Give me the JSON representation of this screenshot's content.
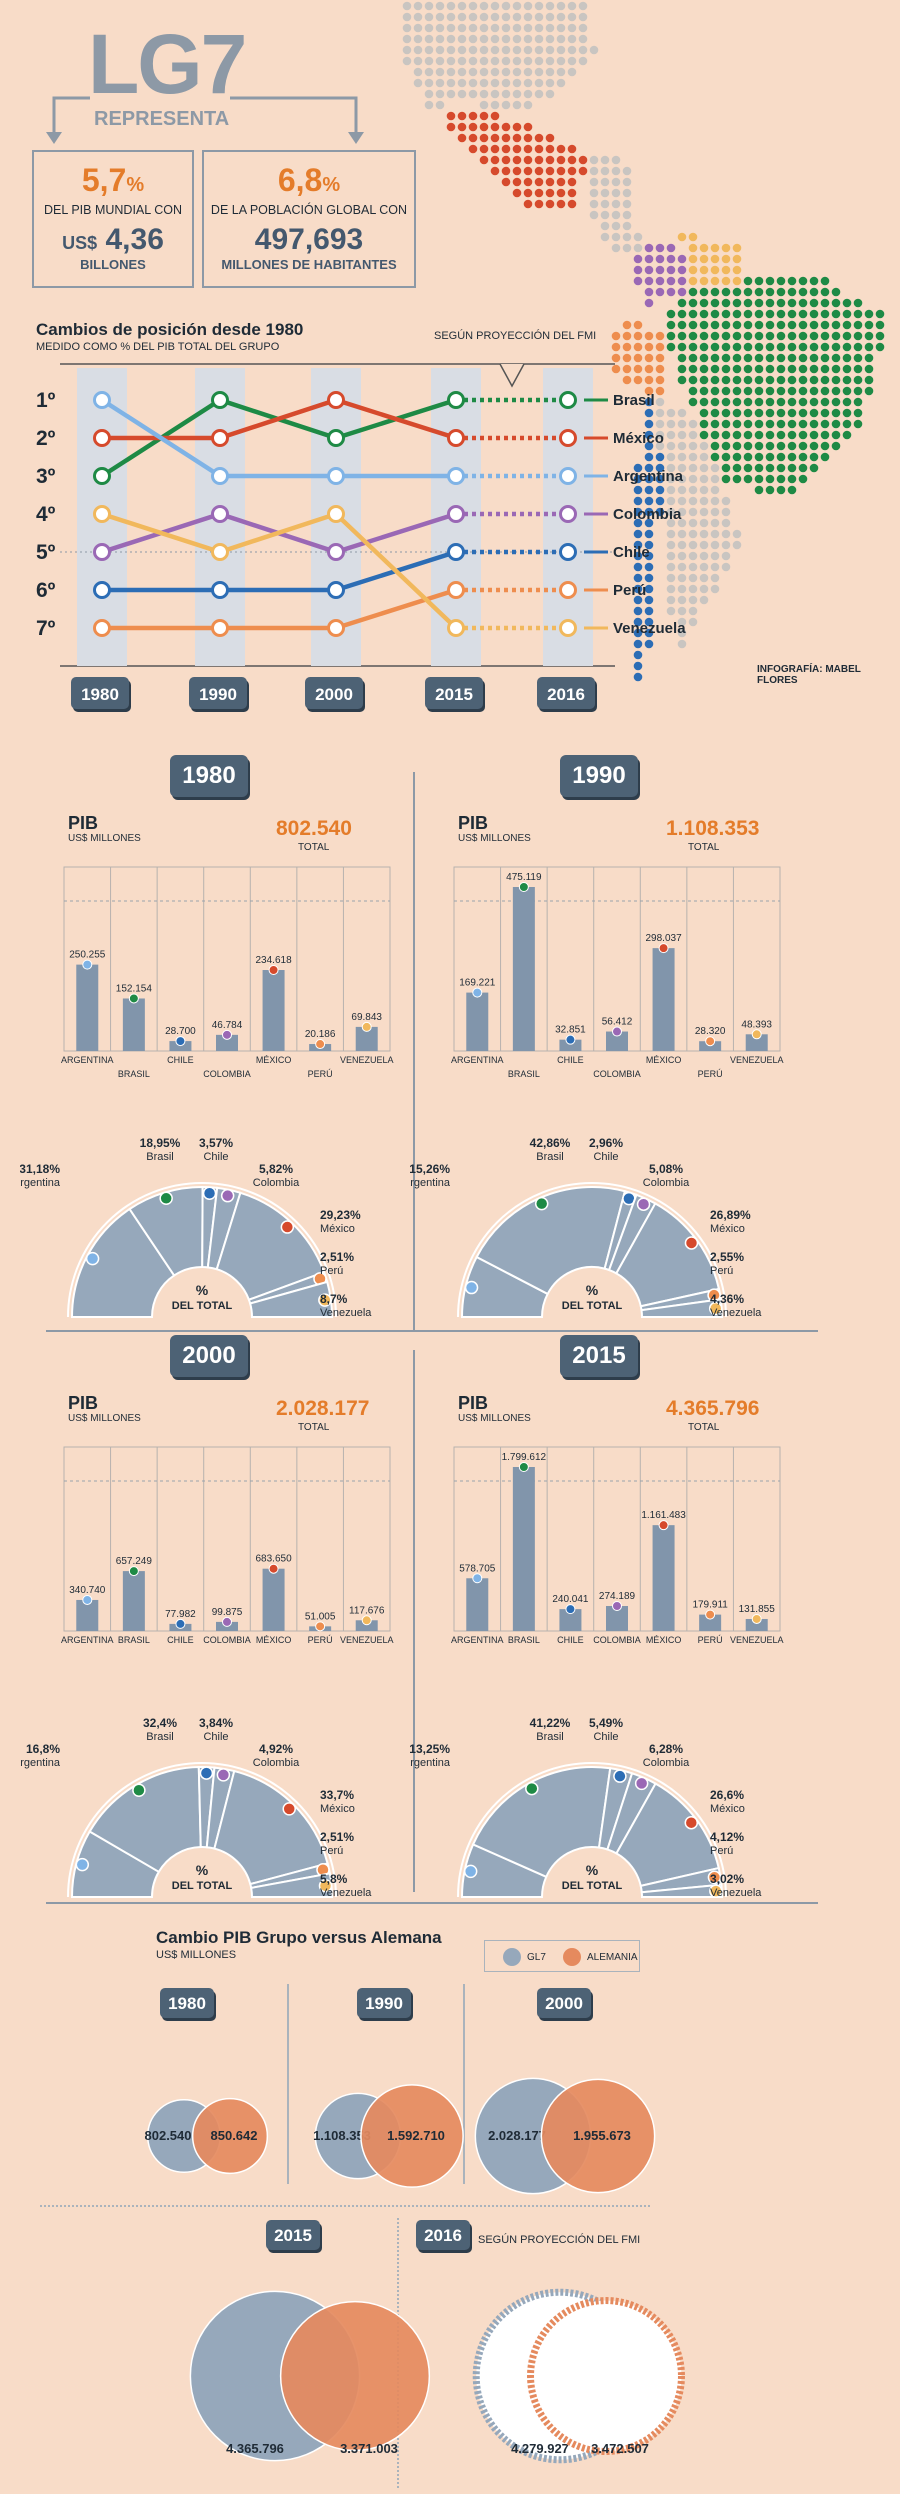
{
  "header": {
    "title": "LG7",
    "subtitle": "REPRESENTA",
    "box1": {
      "pct": "5,7",
      "pct_sign": "%",
      "label": "DEL PIB MUNDIAL CON",
      "currency": "US$",
      "value": "4,36",
      "unit": "BILLONES"
    },
    "box2": {
      "pct": "6,8",
      "pct_sign": "%",
      "label": "DE LA POBLACIÓN GLOBAL CON",
      "value": "497,693",
      "unit": "MILLONES DE HABITANTES"
    }
  },
  "credit": "INFOGRAFÍA: MABEL FLORES",
  "ranking": {
    "title": "Cambios de posición desde 1980",
    "subtitle": "MEDIDO COMO % DEL PIB TOTAL DEL GRUPO",
    "projection_note": "SEGÚN PROYECCIÓN DEL FMI",
    "ranks": [
      "1º",
      "2º",
      "3º",
      "4º",
      "5º",
      "6º",
      "7º"
    ],
    "years": [
      "1980",
      "1990",
      "2000",
      "2015",
      "2016"
    ],
    "countries": [
      {
        "name": "Brasil",
        "color": "#1e8a45",
        "positions": [
          3,
          1,
          2,
          1,
          1
        ]
      },
      {
        "name": "México",
        "color": "#d64a2c",
        "positions": [
          2,
          2,
          1,
          2,
          2
        ]
      },
      {
        "name": "Argentina",
        "color": "#7fb3e6",
        "positions": [
          1,
          3,
          3,
          3,
          3
        ]
      },
      {
        "name": "Colombia",
        "color": "#9a68b5",
        "positions": [
          5,
          4,
          5,
          4,
          4
        ]
      },
      {
        "name": "Chile",
        "color": "#2c6db5",
        "positions": [
          6,
          6,
          6,
          5,
          5
        ]
      },
      {
        "name": "Perú",
        "color": "#ee8d4e",
        "positions": [
          7,
          7,
          7,
          6,
          6
        ]
      },
      {
        "name": "Venezuela",
        "color": "#f1b85c",
        "positions": [
          4,
          5,
          4,
          7,
          7
        ]
      }
    ]
  },
  "chart_data": [
    {
      "type": "bar",
      "year": "1980",
      "title": "PIB",
      "ylabel": "US$ MILLONES",
      "total": "802.540",
      "total_label": "TOTAL",
      "categories": [
        "ARGENTINA",
        "BRASIL",
        "CHILE",
        "COLOMBIA",
        "MÉXICO",
        "PERÚ",
        "VENEZUELA"
      ],
      "values": [
        250255,
        152154,
        28700,
        46784,
        234618,
        20186,
        69843
      ],
      "labels": [
        "250.255",
        "152.154",
        "28.700",
        "46.784",
        "234.618",
        "20.186",
        "69.843"
      ],
      "ylim": [
        0,
        475119
      ]
    },
    {
      "type": "bar",
      "year": "1990",
      "title": "PIB",
      "ylabel": "US$ MILLONES",
      "total": "1.108.353",
      "total_label": "TOTAL",
      "categories": [
        "ARGENTINA",
        "BRASIL",
        "CHILE",
        "COLOMBIA",
        "MÉXICO",
        "PERÚ",
        "VENEZUELA"
      ],
      "values": [
        169221,
        475119,
        32851,
        56412,
        298037,
        28320,
        48393
      ],
      "labels": [
        "169.221",
        "475.119",
        "32.851",
        "56.412",
        "298.037",
        "28.320",
        "48.393"
      ],
      "ylim": [
        0,
        475119
      ]
    },
    {
      "type": "bar",
      "year": "2000",
      "title": "PIB",
      "ylabel": "US$ MILLONES",
      "total": "2.028.177",
      "total_label": "TOTAL",
      "categories": [
        "ARGENTINA",
        "BRASIL",
        "CHILE",
        "COLOMBIA",
        "MÉXICO",
        "PERÚ",
        "VENEZUELA"
      ],
      "values": [
        340740,
        657249,
        77982,
        99875,
        683650,
        51005,
        117676
      ],
      "labels": [
        "340.740",
        "657.249",
        "77.982",
        "99.875",
        "683.650",
        "51.005",
        "117.676"
      ],
      "ylim": [
        0,
        1799612
      ]
    },
    {
      "type": "bar",
      "year": "2015",
      "title": "PIB",
      "ylabel": "US$ MILLONES",
      "total": "4.365.796",
      "total_label": "TOTAL",
      "categories": [
        "ARGENTINA",
        "BRASIL",
        "CHILE",
        "COLOMBIA",
        "MÉXICO",
        "PERÚ",
        "VENEZUELA"
      ],
      "values": [
        578705,
        1799612,
        240041,
        274189,
        1161483,
        179911,
        131855
      ],
      "labels": [
        "578.705",
        "1.799.612",
        "240.041",
        "274.189",
        "1.161.483",
        "179.911",
        "131.855"
      ],
      "ylim": [
        0,
        1799612
      ]
    },
    {
      "type": "pie",
      "year": "1980",
      "center_label": "%",
      "center_sub": "DEL TOTAL",
      "categories": [
        "Argentina",
        "Brasil",
        "Chile",
        "Colombia",
        "México",
        "Perú",
        "Venezuela"
      ],
      "values": [
        31.18,
        18.95,
        3.57,
        5.82,
        29.23,
        2.51,
        8.7
      ],
      "labels": [
        "31,18%",
        "18,95%",
        "3,57%",
        "5,82%",
        "29,23%",
        "2,51%",
        "8,7%"
      ]
    },
    {
      "type": "pie",
      "year": "1990",
      "center_label": "%",
      "center_sub": "DEL TOTAL",
      "categories": [
        "Argentina",
        "Brasil",
        "Chile",
        "Colombia",
        "México",
        "Perú",
        "Venezuela"
      ],
      "values": [
        15.26,
        42.86,
        2.96,
        5.08,
        26.89,
        2.55,
        4.36
      ],
      "labels": [
        "15,26%",
        "42,86%",
        "2,96%",
        "5,08%",
        "26,89%",
        "2,55%",
        "4,36%"
      ]
    },
    {
      "type": "pie",
      "year": "2000",
      "center_label": "%",
      "center_sub": "DEL TOTAL",
      "categories": [
        "Argentina",
        "Brasil",
        "Chile",
        "Colombia",
        "México",
        "Perú",
        "Venezuela"
      ],
      "values": [
        16.8,
        32.4,
        3.84,
        4.92,
        33.7,
        2.51,
        5.8
      ],
      "labels": [
        "16,8%",
        "32,4%",
        "3,84%",
        "4,92%",
        "33,7%",
        "2,51%",
        "5,8%"
      ]
    },
    {
      "type": "pie",
      "year": "2015",
      "center_label": "%",
      "center_sub": "DEL TOTAL",
      "categories": [
        "Argentina",
        "Brasil",
        "Chile",
        "Colombia",
        "México",
        "Perú",
        "Venezuela"
      ],
      "values": [
        13.25,
        41.22,
        5.49,
        6.28,
        26.6,
        4.12,
        3.02
      ],
      "labels": [
        "13,25%",
        "41,22%",
        "5,49%",
        "6,28%",
        "26,6%",
        "4,12%",
        "3,02%"
      ]
    },
    {
      "type": "bubble",
      "title": "Cambio PIB Grupo versus Alemana",
      "subtitle": "US$ MILLONES",
      "legend": [
        "GL7",
        "ALEMANIA"
      ],
      "projection_note": "SEGÚN PROYECCIÓN DEL FMI",
      "years": [
        "1980",
        "1990",
        "2000",
        "2015",
        "2016"
      ],
      "series": [
        {
          "name": "GL7",
          "color": "#96a8bb",
          "values": [
            802540,
            1108353,
            2028177,
            4365796,
            4279927
          ],
          "labels": [
            "802.540",
            "1.108.353",
            "2.028.177",
            "4.365.796",
            "4.279.927"
          ]
        },
        {
          "name": "ALEMANIA",
          "color": "#e58a5e",
          "values": [
            850642,
            1592710,
            1955673,
            3371003,
            3472507
          ],
          "labels": [
            "850.642",
            "1.592.710",
            "1.955.673",
            "3.371.003",
            "3.472.507"
          ]
        }
      ]
    }
  ],
  "colors": {
    "bar": "#8195ab",
    "pie": "#96a8bb",
    "grid": "#b7b2ae",
    "orange": "#e47c2a",
    "badge": "#4d6275",
    "map_grey": "#c9c5c1",
    "map_green": "#1e8a45",
    "map_blue": "#2c6db5",
    "map_red": "#d64a2c"
  }
}
